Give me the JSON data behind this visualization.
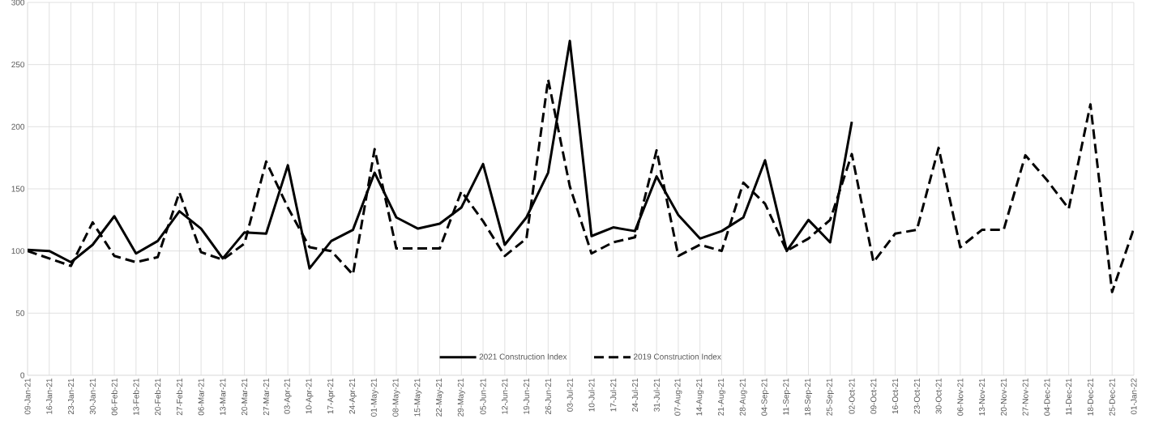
{
  "chart_data": {
    "type": "line",
    "categories": [
      "09-Jan-21",
      "16-Jan-21",
      "23-Jan-21",
      "30-Jan-21",
      "06-Feb-21",
      "13-Feb-21",
      "20-Feb-21",
      "27-Feb-21",
      "06-Mar-21",
      "13-Mar-21",
      "20-Mar-21",
      "27-Mar-21",
      "03-Apr-21",
      "10-Apr-21",
      "17-Apr-21",
      "24-Apr-21",
      "01-May-21",
      "08-May-21",
      "15-May-21",
      "22-May-21",
      "29-May-21",
      "05-Jun-21",
      "12-Jun-21",
      "19-Jun-21",
      "26-Jun-21",
      "03-Jul-21",
      "10-Jul-21",
      "17-Jul-21",
      "24-Jul-21",
      "31-Jul-21",
      "07-Aug-21",
      "14-Aug-21",
      "21-Aug-21",
      "28-Aug-21",
      "04-Sep-21",
      "11-Sep-21",
      "18-Sep-21",
      "25-Sep-21",
      "02-Oct-21",
      "09-Oct-21",
      "16-Oct-21",
      "23-Oct-21",
      "30-Oct-21",
      "06-Nov-21",
      "13-Nov-21",
      "20-Nov-21",
      "27-Nov-21",
      "04-Dec-21",
      "11-Dec-21",
      "18-Dec-21",
      "25-Dec-21",
      "01-Jan-22"
    ],
    "series": [
      {
        "name": "2021 Construction Index",
        "color": "#000000",
        "line_style": "solid",
        "values": [
          101,
          100,
          91,
          105,
          128,
          98,
          108,
          132,
          118,
          94,
          115,
          114,
          169,
          86,
          108,
          117,
          163,
          127,
          118,
          122,
          135,
          170,
          105,
          127,
          163,
          269,
          112,
          119,
          116,
          160,
          129,
          110,
          116,
          127,
          173,
          100,
          125,
          107,
          204,
          null,
          null,
          null,
          null,
          null,
          null,
          null,
          null,
          null,
          null,
          null,
          null,
          null
        ]
      },
      {
        "name": "2019 Construction Index",
        "color": "#000000",
        "line_style": "dashed",
        "values": [
          100,
          94,
          88,
          123,
          96,
          91,
          95,
          147,
          99,
          93,
          106,
          172,
          135,
          103,
          100,
          81,
          182,
          102,
          102,
          102,
          148,
          124,
          96,
          110,
          238,
          152,
          98,
          107,
          111,
          181,
          96,
          105,
          100,
          155,
          138,
          100,
          110,
          125,
          178,
          91,
          114,
          117,
          183,
          103,
          117,
          117,
          177,
          157,
          134,
          218,
          67,
          118
        ]
      }
    ],
    "ylim": [
      0,
      300
    ],
    "yticks": [
      0,
      50,
      100,
      150,
      200,
      250,
      300
    ],
    "grid": true,
    "legend": "bottom",
    "marker": "none"
  }
}
